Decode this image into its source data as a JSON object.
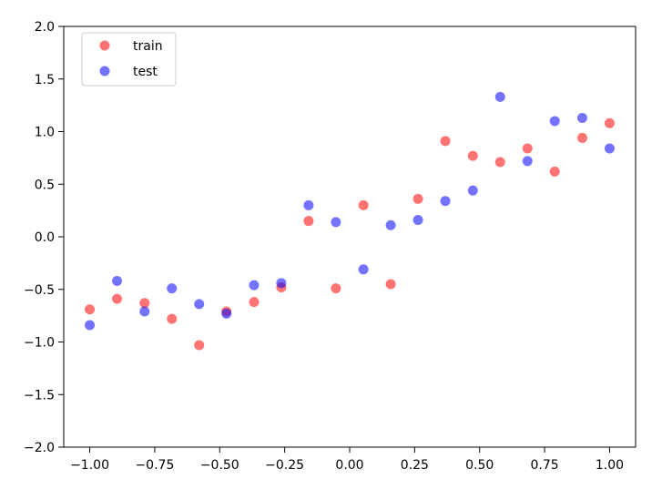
{
  "chart_data": {
    "type": "scatter",
    "title": "",
    "xlabel": "",
    "ylabel": "",
    "xlim": [
      -1.1,
      1.1
    ],
    "ylim": [
      -2.0,
      2.0
    ],
    "grid": false,
    "legend_position": "top-left",
    "xticks": [
      "−1.00",
      "−0.75",
      "−0.50",
      "−0.25",
      "0.00",
      "0.25",
      "0.50",
      "0.75",
      "1.00"
    ],
    "xtick_values": [
      -1.0,
      -0.75,
      -0.5,
      -0.25,
      0.0,
      0.25,
      0.5,
      0.75,
      1.0
    ],
    "yticks": [
      "−2.0",
      "−1.5",
      "−1.0",
      "−0.5",
      "0.0",
      "0.5",
      "1.0",
      "1.5",
      "2.0"
    ],
    "ytick_values": [
      -2.0,
      -1.5,
      -1.0,
      -0.5,
      0.0,
      0.5,
      1.0,
      1.5,
      2.0
    ],
    "series": [
      {
        "name": "train",
        "color": "#ff0000",
        "x": [
          -1.0,
          -0.895,
          -0.789,
          -0.684,
          -0.579,
          -0.474,
          -0.368,
          -0.263,
          -0.158,
          -0.053,
          0.053,
          0.158,
          0.263,
          0.368,
          0.474,
          0.579,
          0.684,
          0.789,
          0.895,
          1.0
        ],
        "y": [
          -0.69,
          -0.59,
          -0.63,
          -0.78,
          -1.03,
          -0.71,
          -0.62,
          -0.48,
          0.15,
          -0.49,
          0.3,
          -0.45,
          0.36,
          0.91,
          0.77,
          0.71,
          0.84,
          0.62,
          0.94,
          1.08
        ]
      },
      {
        "name": "test",
        "color": "#0000ff",
        "x": [
          -1.0,
          -0.895,
          -0.789,
          -0.684,
          -0.579,
          -0.474,
          -0.368,
          -0.263,
          -0.158,
          -0.053,
          0.053,
          0.158,
          0.263,
          0.368,
          0.474,
          0.579,
          0.684,
          0.789,
          0.895,
          1.0
        ],
        "y": [
          -0.84,
          -0.42,
          -0.71,
          -0.49,
          -0.64,
          -0.73,
          -0.46,
          -0.44,
          0.3,
          0.14,
          -0.31,
          0.11,
          0.16,
          0.34,
          0.44,
          1.33,
          0.72,
          1.1,
          1.13,
          0.84
        ]
      }
    ]
  }
}
